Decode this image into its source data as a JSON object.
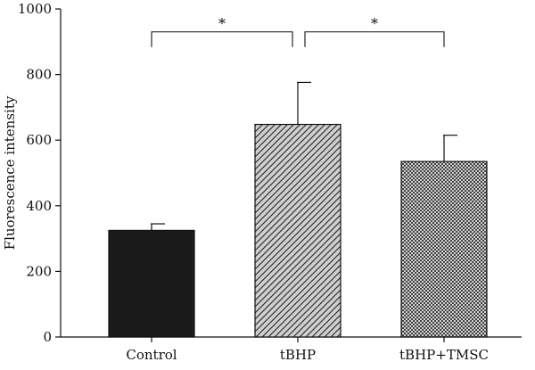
{
  "chart_data": {
    "type": "bar",
    "title": "",
    "xlabel": "",
    "ylabel": "Fluorescence intensity",
    "ylim": [
      0,
      1000
    ],
    "yticks": [
      0,
      200,
      400,
      600,
      800,
      1000
    ],
    "categories": [
      "Control",
      "tBHP",
      "tBHP+TMSC"
    ],
    "values": [
      325,
      648,
      535
    ],
    "errors": [
      20,
      128,
      80
    ],
    "fills": [
      {
        "pattern": "solid",
        "color": "#1a1a1a"
      },
      {
        "pattern": "diagonal-hatch",
        "color": "#cfcfcf",
        "line_color": "#222222"
      },
      {
        "pattern": "crosshatch",
        "color": "#ffffff",
        "line_color": "#222222"
      }
    ],
    "significance": [
      {
        "from": 0,
        "to": 1,
        "label": "*",
        "level": 930
      },
      {
        "from": 1,
        "to": 2,
        "label": "*",
        "level": 930
      }
    ],
    "grid": false,
    "legend": "none"
  }
}
